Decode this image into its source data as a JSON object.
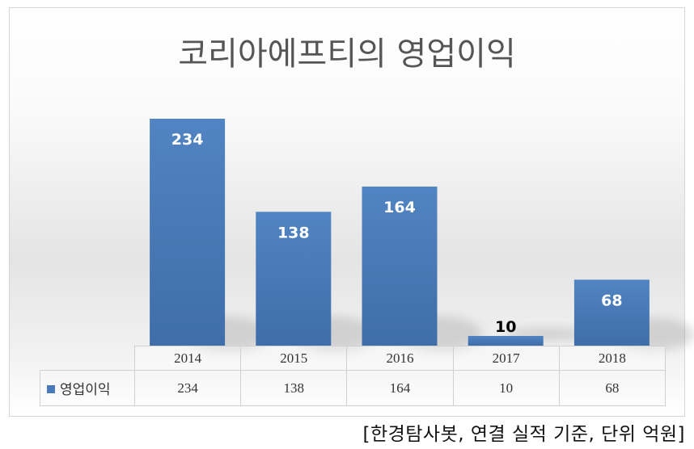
{
  "chart_data": {
    "type": "bar",
    "title": "코리아에프티의 영업이익",
    "categories": [
      "2014",
      "2015",
      "2016",
      "2017",
      "2018"
    ],
    "series": [
      {
        "name": "영업이익",
        "values": [
          234,
          138,
          164,
          10,
          68
        ]
      }
    ],
    "ylim": [
      0,
      234
    ],
    "grid": false,
    "legend": "data-table",
    "data_table": true
  },
  "colors": {
    "bar": "#4a7bb8",
    "label_inside": "#ffffff",
    "label_outside": "#000000"
  },
  "source_note": "[한경탐사봇, 연결 실적 기준, 단위 억원]"
}
